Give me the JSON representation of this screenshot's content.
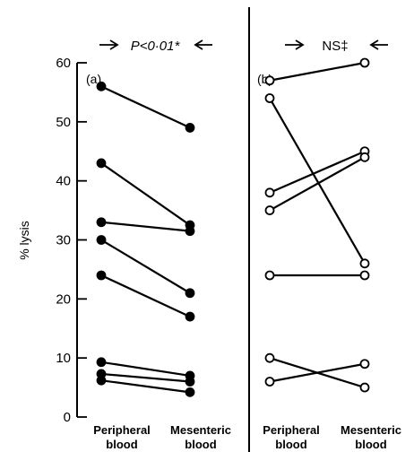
{
  "chart_data": {
    "type": "scatter",
    "ylabel": "% lysis",
    "ylim": [
      0,
      60
    ],
    "yticks": [
      0,
      10,
      20,
      30,
      40,
      50,
      60
    ],
    "grid": false,
    "categories": [
      [
        "Peripheral",
        "blood"
      ],
      [
        "Mesenteric",
        "blood"
      ]
    ],
    "panels": [
      {
        "label": "(a)",
        "significance": "P<0·01*",
        "marker": "filled",
        "pairs": [
          [
            56,
            49
          ],
          [
            43,
            32.5
          ],
          [
            33,
            31.5
          ],
          [
            30,
            21
          ],
          [
            24,
            17
          ],
          [
            9.3,
            7
          ],
          [
            7.3,
            6
          ],
          [
            6.2,
            4.2
          ]
        ]
      },
      {
        "label": "(b)",
        "significance": "NS‡",
        "marker": "open",
        "pairs": [
          [
            57,
            60
          ],
          [
            54,
            26
          ],
          [
            38,
            45
          ],
          [
            35,
            44
          ],
          [
            24,
            24
          ],
          [
            10,
            5
          ],
          [
            6,
            9
          ]
        ]
      }
    ]
  }
}
